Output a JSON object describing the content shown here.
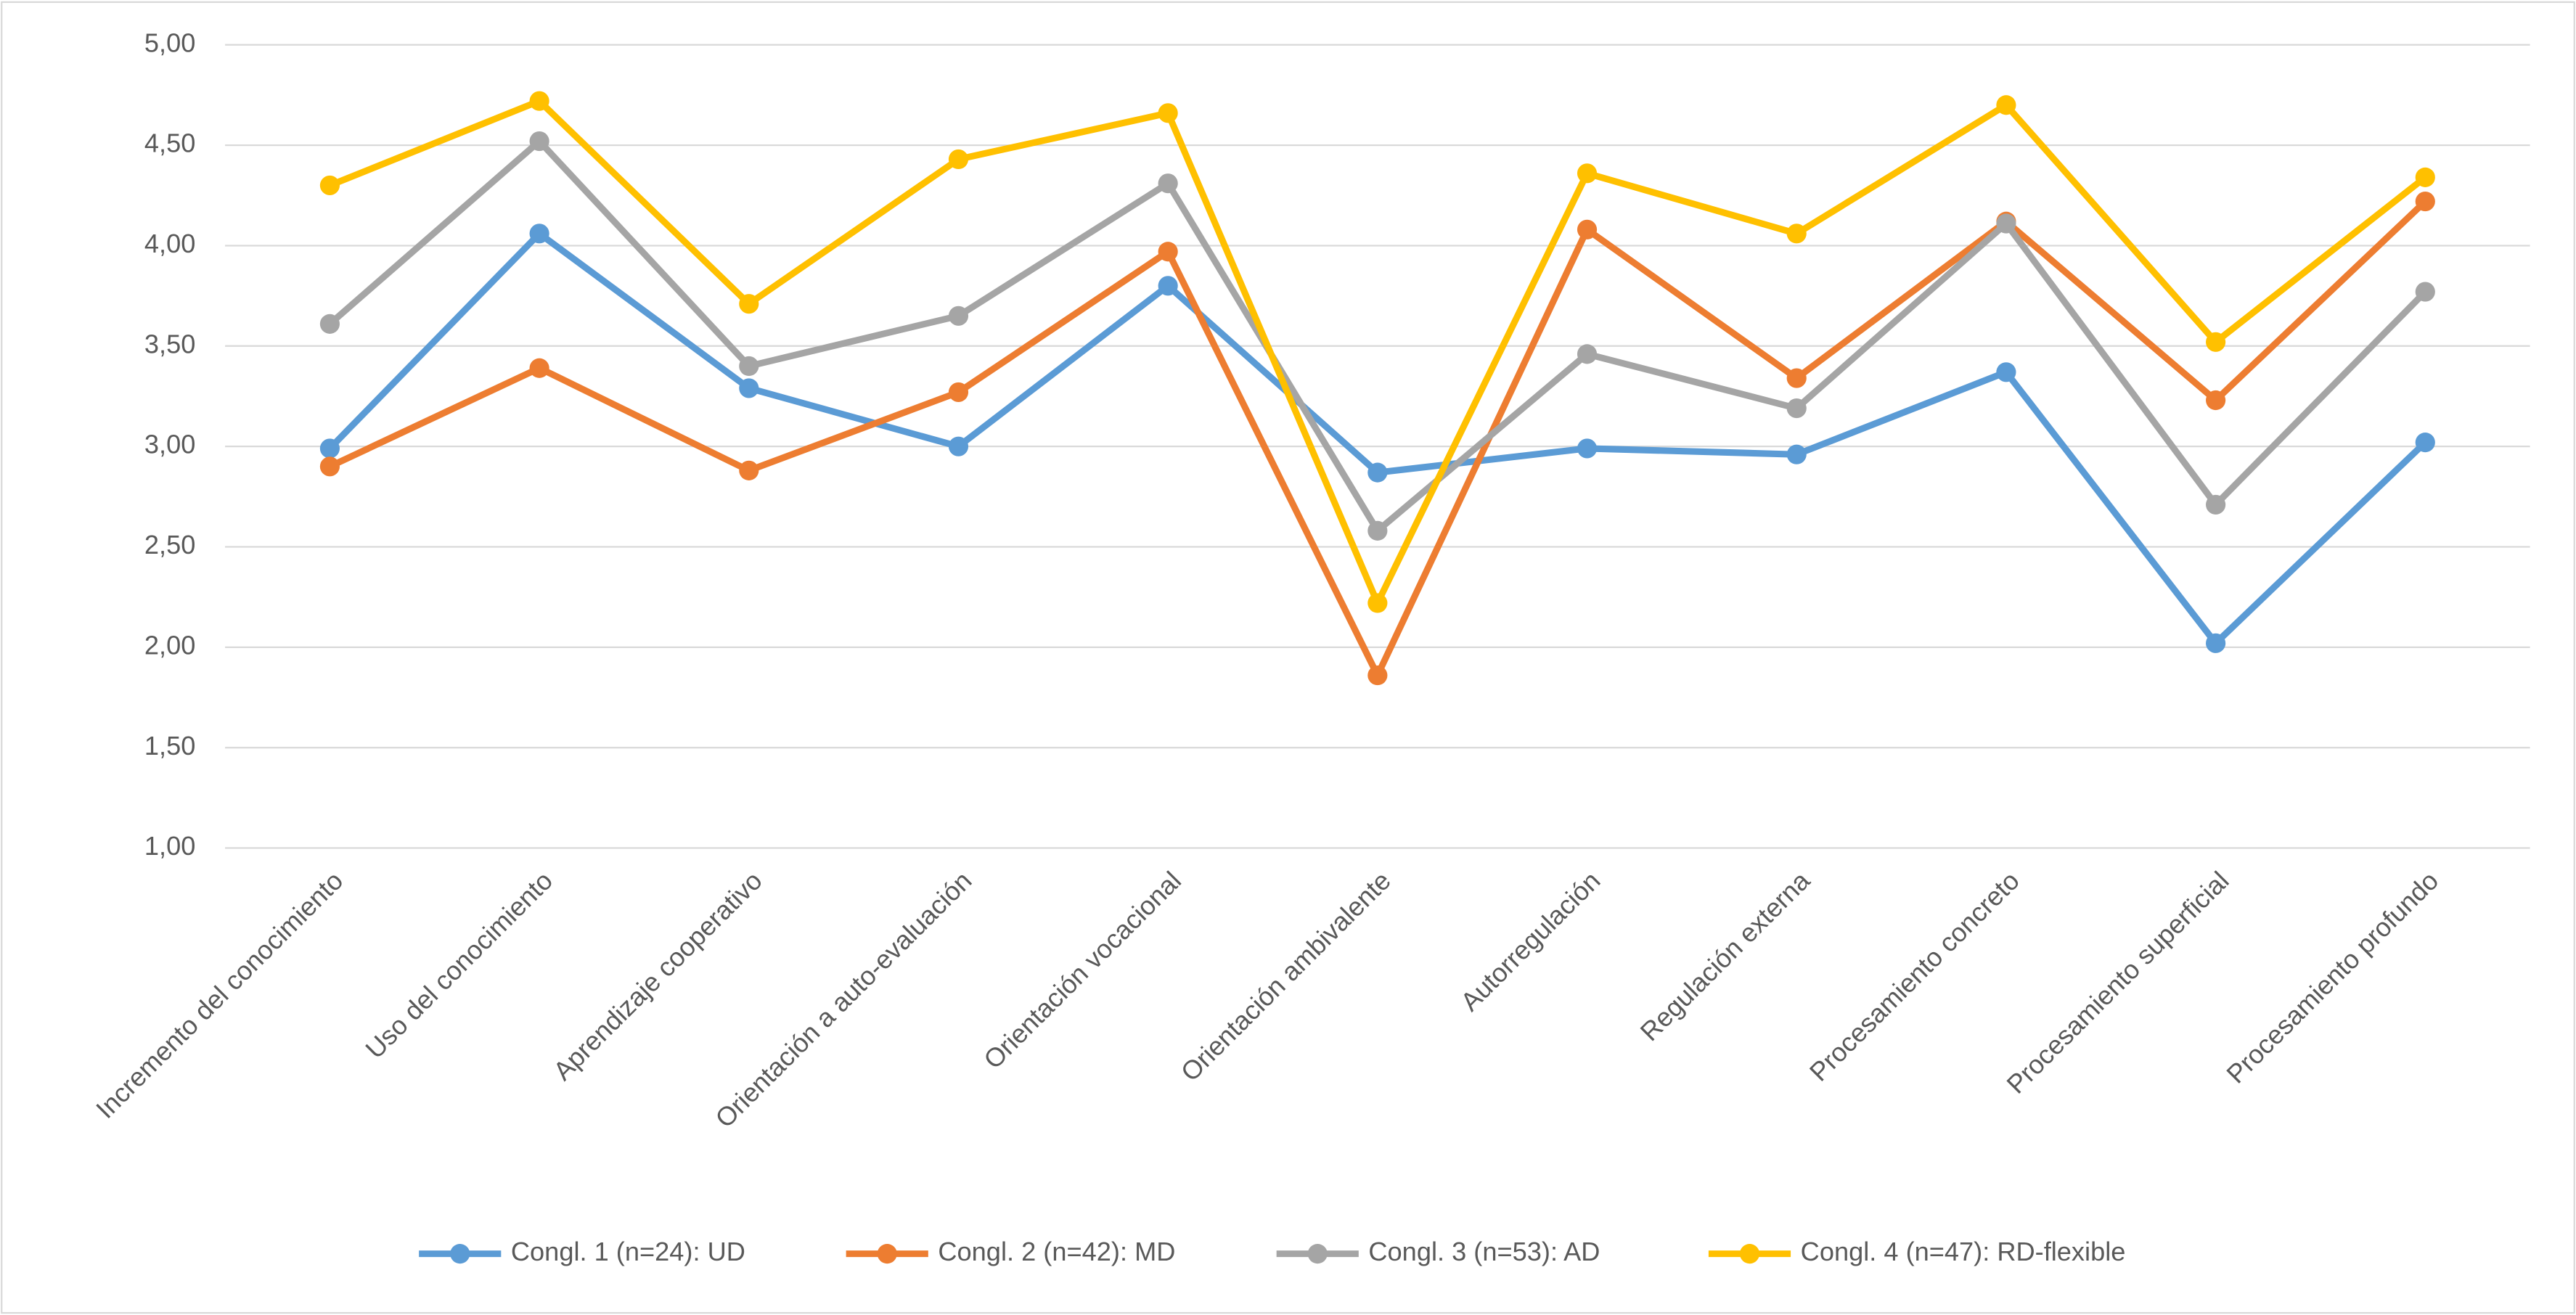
{
  "chart_data": {
    "type": "line",
    "categories": [
      "Incremento del conocimiento",
      "Uso del conocimiento",
      "Aprendizaje cooperativo",
      "Orientación a auto-evaluación",
      "Orientación vocacional",
      "Orientación ambivalente",
      "Autorregulación",
      "Regulación externa",
      "Procesamiento concreto",
      "Procesamiento superficial",
      "Procesamiento profundo"
    ],
    "series": [
      {
        "name": "Congl. 1 (n=24): UD",
        "color": "#5b9bd5",
        "values": [
          2.99,
          4.06,
          3.29,
          3.0,
          3.8,
          2.87,
          2.99,
          2.96,
          3.37,
          2.02,
          3.02
        ]
      },
      {
        "name": "Congl. 2 (n=42): MD",
        "color": "#ed7d31",
        "values": [
          2.9,
          3.39,
          2.88,
          3.27,
          3.97,
          1.86,
          4.08,
          3.34,
          4.12,
          3.23,
          4.22
        ]
      },
      {
        "name": "Congl. 3 (n=53): AD",
        "color": "#a5a5a5",
        "values": [
          3.61,
          4.52,
          3.4,
          3.65,
          4.31,
          2.58,
          3.46,
          3.19,
          4.11,
          2.71,
          3.77
        ]
      },
      {
        "name": "Congl. 4 (n=47): RD-flexible",
        "color": "#ffc000",
        "values": [
          4.3,
          4.72,
          3.71,
          4.43,
          4.66,
          2.22,
          4.36,
          4.06,
          4.7,
          3.52,
          4.34
        ]
      }
    ],
    "ylim": [
      1,
      5
    ],
    "yticks": [
      {
        "value": 1,
        "label": "1,00"
      },
      {
        "value": 1.5,
        "label": "1,50"
      },
      {
        "value": 2,
        "label": "2,00"
      },
      {
        "value": 2.5,
        "label": "2,50"
      },
      {
        "value": 3,
        "label": "3,00"
      },
      {
        "value": 3.5,
        "label": "3,50"
      },
      {
        "value": 4,
        "label": "4,00"
      },
      {
        "value": 4.5,
        "label": "4,50"
      },
      {
        "value": 5,
        "label": "5,00"
      }
    ],
    "grid": true,
    "legend": "bottom"
  }
}
